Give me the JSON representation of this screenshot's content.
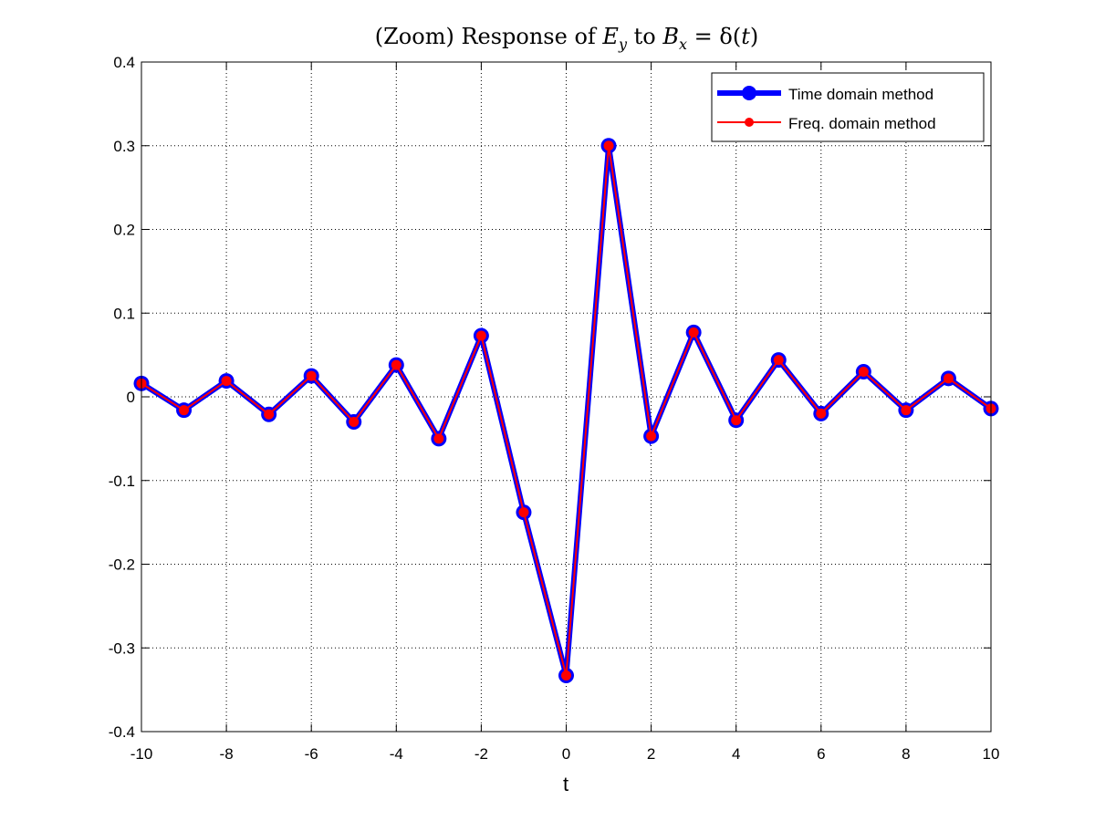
{
  "chart_data": {
    "type": "line",
    "title_parts": [
      "(Zoom) Response of ",
      "E",
      "y",
      " to ",
      "B",
      "x",
      " = δ(",
      "t",
      ")"
    ],
    "xlabel": "t",
    "ylabel": "",
    "xlim": [
      -10,
      10
    ],
    "ylim": [
      -0.4,
      0.4
    ],
    "xticks": [
      -10,
      -8,
      -6,
      -4,
      -2,
      0,
      2,
      4,
      6,
      8,
      10
    ],
    "xtick_labels": [
      "-10",
      "-8",
      "-6",
      "-4",
      "-2",
      "0",
      "2",
      "4",
      "6",
      "8",
      "10"
    ],
    "yticks": [
      -0.4,
      -0.3,
      -0.2,
      -0.1,
      0,
      0.1,
      0.2,
      0.3,
      0.4
    ],
    "ytick_labels": [
      "-0.4",
      "-0.3",
      "-0.2",
      "-0.1",
      "0",
      "0.1",
      "0.2",
      "0.3",
      "0.4"
    ],
    "grid": true,
    "legend_position": "top-right",
    "x": [
      -10,
      -9,
      -8,
      -7,
      -6,
      -5,
      -4,
      -3,
      -2,
      -1,
      0,
      1,
      2,
      3,
      4,
      5,
      6,
      7,
      8,
      9,
      10
    ],
    "series": [
      {
        "name": "Time domain method",
        "color": "#0000ff",
        "values": [
          0.016,
          -0.016,
          0.019,
          -0.021,
          0.025,
          -0.03,
          0.038,
          -0.05,
          0.073,
          -0.138,
          -0.333,
          0.3,
          -0.047,
          0.077,
          -0.028,
          0.044,
          -0.02,
          0.03,
          -0.016,
          0.022,
          -0.014
        ]
      },
      {
        "name": "Freq. domain method",
        "color": "#ff0000",
        "values": [
          0.016,
          -0.016,
          0.019,
          -0.021,
          0.025,
          -0.03,
          0.038,
          -0.05,
          0.073,
          -0.138,
          -0.333,
          0.3,
          -0.047,
          0.077,
          -0.028,
          0.044,
          -0.02,
          0.03,
          -0.016,
          0.022,
          -0.014
        ]
      }
    ]
  }
}
